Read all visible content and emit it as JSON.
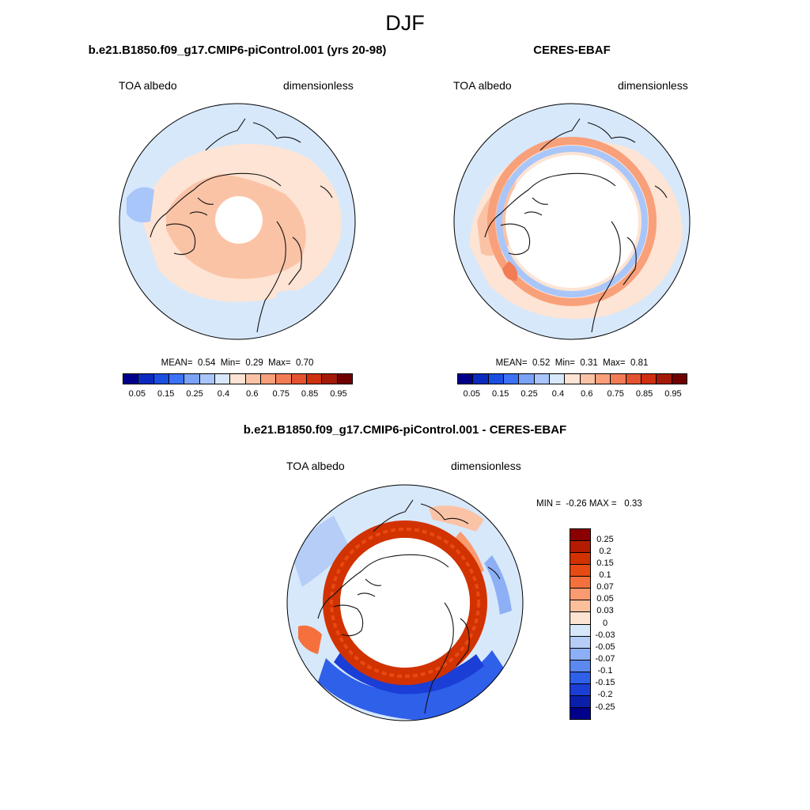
{
  "title": "DJF",
  "panels": {
    "model": {
      "title": "b.e21.B1850.f09_g17.CMIP6-piControl.001 (yrs 20-98)",
      "variable": "TOA albedo",
      "units": "dimensionless",
      "stats": {
        "mean_label": "MEAN=",
        "mean": "0.54",
        "min_label": "Min=",
        "min": "0.29",
        "max_label": "Max=",
        "max": "0.70"
      }
    },
    "obs": {
      "title": "CERES-EBAF",
      "variable": "TOA albedo",
      "units": "dimensionless",
      "stats": {
        "mean_label": "MEAN=",
        "mean": "0.52",
        "min_label": "Min=",
        "min": "0.31",
        "max_label": "Max=",
        "max": "0.81"
      }
    },
    "diff": {
      "title": "b.e21.B1850.f09_g17.CMIP6-piControl.001 - CERES-EBAF",
      "variable": "TOA albedo",
      "units": "dimensionless",
      "stats": {
        "min_label": "MIN =",
        "min": "-0.26",
        "max_label": "MAX =",
        "max": "0.33"
      }
    }
  },
  "colorbar_abs": {
    "labels": [
      "0.05",
      "0.15",
      "0.25",
      "0.4",
      "0.6",
      "0.75",
      "0.85",
      "0.95"
    ],
    "colors": [
      "#00008b",
      "#0a2bbf",
      "#1a4fe0",
      "#3c72f5",
      "#7aa3f7",
      "#a9c6fa",
      "#d7e8fb",
      "#fde4d4",
      "#fbc3a6",
      "#f8a07a",
      "#f27c55",
      "#e55230",
      "#cf3010",
      "#a31b08",
      "#700000"
    ]
  },
  "colorbar_diff": {
    "labels": [
      "0.25",
      "0.2",
      "0.15",
      "0.1",
      "0.07",
      "0.05",
      "0.03",
      "0",
      "-0.03",
      "-0.05",
      "-0.07",
      "-0.1",
      "-0.15",
      "-0.2",
      "-0.25"
    ],
    "colors": [
      "#8b0000",
      "#b51b00",
      "#d23200",
      "#e84a14",
      "#f5703c",
      "#f99a70",
      "#fbbf9c",
      "#fde4d2",
      "#d7e8fb",
      "#b5cdf7",
      "#8daff5",
      "#5b89f0",
      "#2f60ea",
      "#1a3ed6",
      "#0a20ac",
      "#00008b"
    ]
  }
}
